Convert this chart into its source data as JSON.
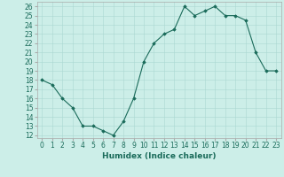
{
  "x": [
    0,
    1,
    2,
    3,
    4,
    5,
    6,
    7,
    8,
    9,
    10,
    11,
    12,
    13,
    14,
    15,
    16,
    17,
    18,
    19,
    20,
    21,
    22,
    23
  ],
  "y": [
    18,
    17.5,
    16,
    15,
    13,
    13,
    12.5,
    12,
    13.5,
    16,
    20,
    22,
    23,
    23.5,
    26,
    25,
    25.5,
    26,
    25,
    25,
    24.5,
    21,
    19,
    19
  ],
  "line_color": "#1a6b5a",
  "marker": "D",
  "marker_size": 1.8,
  "bg_color": "#cceee8",
  "grid_color": "#aad8d2",
  "xlabel": "Humidex (Indice chaleur)",
  "xlim": [
    -0.5,
    23.5
  ],
  "ylim": [
    12,
    26
  ],
  "yticks": [
    12,
    13,
    14,
    15,
    16,
    17,
    18,
    19,
    20,
    21,
    22,
    23,
    24,
    25,
    26
  ],
  "xtick_labels": [
    "0",
    "1",
    "2",
    "3",
    "4",
    "5",
    "6",
    "7",
    "8",
    "9",
    "10",
    "11",
    "12",
    "13",
    "14",
    "15",
    "16",
    "17",
    "18",
    "19",
    "20",
    "21",
    "22",
    "23"
  ],
  "label_fontsize": 6.5,
  "tick_fontsize": 5.5
}
